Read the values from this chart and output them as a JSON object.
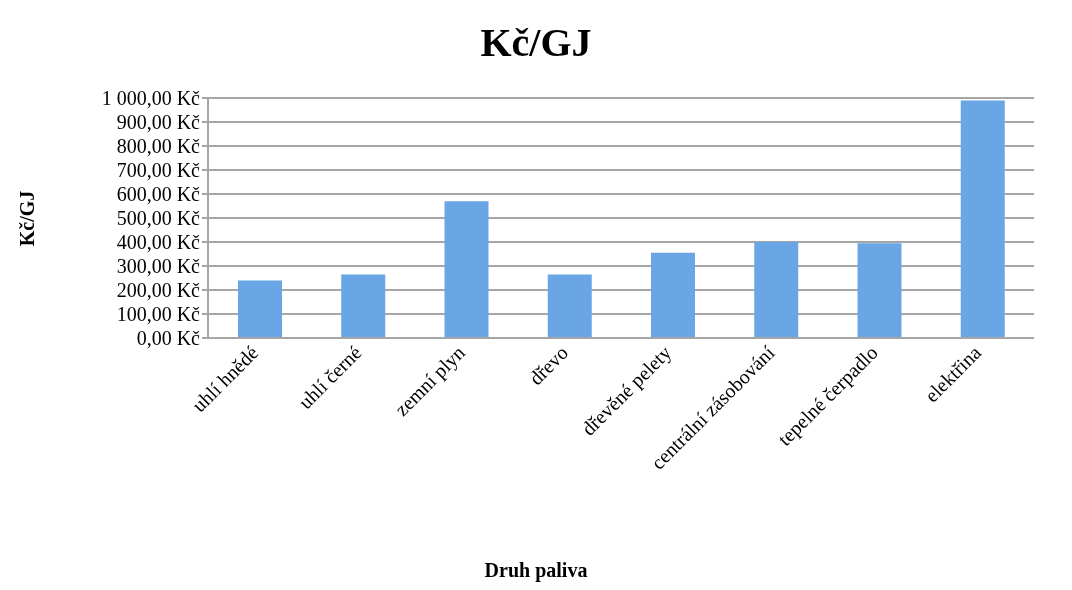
{
  "chart_data": {
    "type": "bar",
    "title": "Kč/GJ",
    "xlabel": "Druh paliva",
    "ylabel": "Kč/GJ",
    "categories": [
      "uhlí hnědé",
      "uhlí černé",
      "zemní plyn",
      "dřevo",
      "dřevěné pelety",
      "centrální zásobování",
      "tepelné čerpadlo",
      "elektřina"
    ],
    "values": [
      240,
      265,
      570,
      265,
      355,
      400,
      395,
      990
    ],
    "color": "#6aa6e6",
    "ylim": [
      0,
      1000
    ],
    "yticks": [
      {
        "value": 0,
        "label": "0,00 Kč"
      },
      {
        "value": 100,
        "label": "100,00 Kč"
      },
      {
        "value": 200,
        "label": "200,00 Kč"
      },
      {
        "value": 300,
        "label": "300,00 Kč"
      },
      {
        "value": 400,
        "label": "400,00 Kč"
      },
      {
        "value": 500,
        "label": "500,00 Kč"
      },
      {
        "value": 600,
        "label": "600,00 Kč"
      },
      {
        "value": 700,
        "label": "700,00 Kč"
      },
      {
        "value": 800,
        "label": "800,00 Kč"
      },
      {
        "value": 900,
        "label": "900,00 Kč"
      },
      {
        "value": 1000,
        "label": "1 000,00 Kč"
      }
    ],
    "grid": "y",
    "legend": false
  }
}
